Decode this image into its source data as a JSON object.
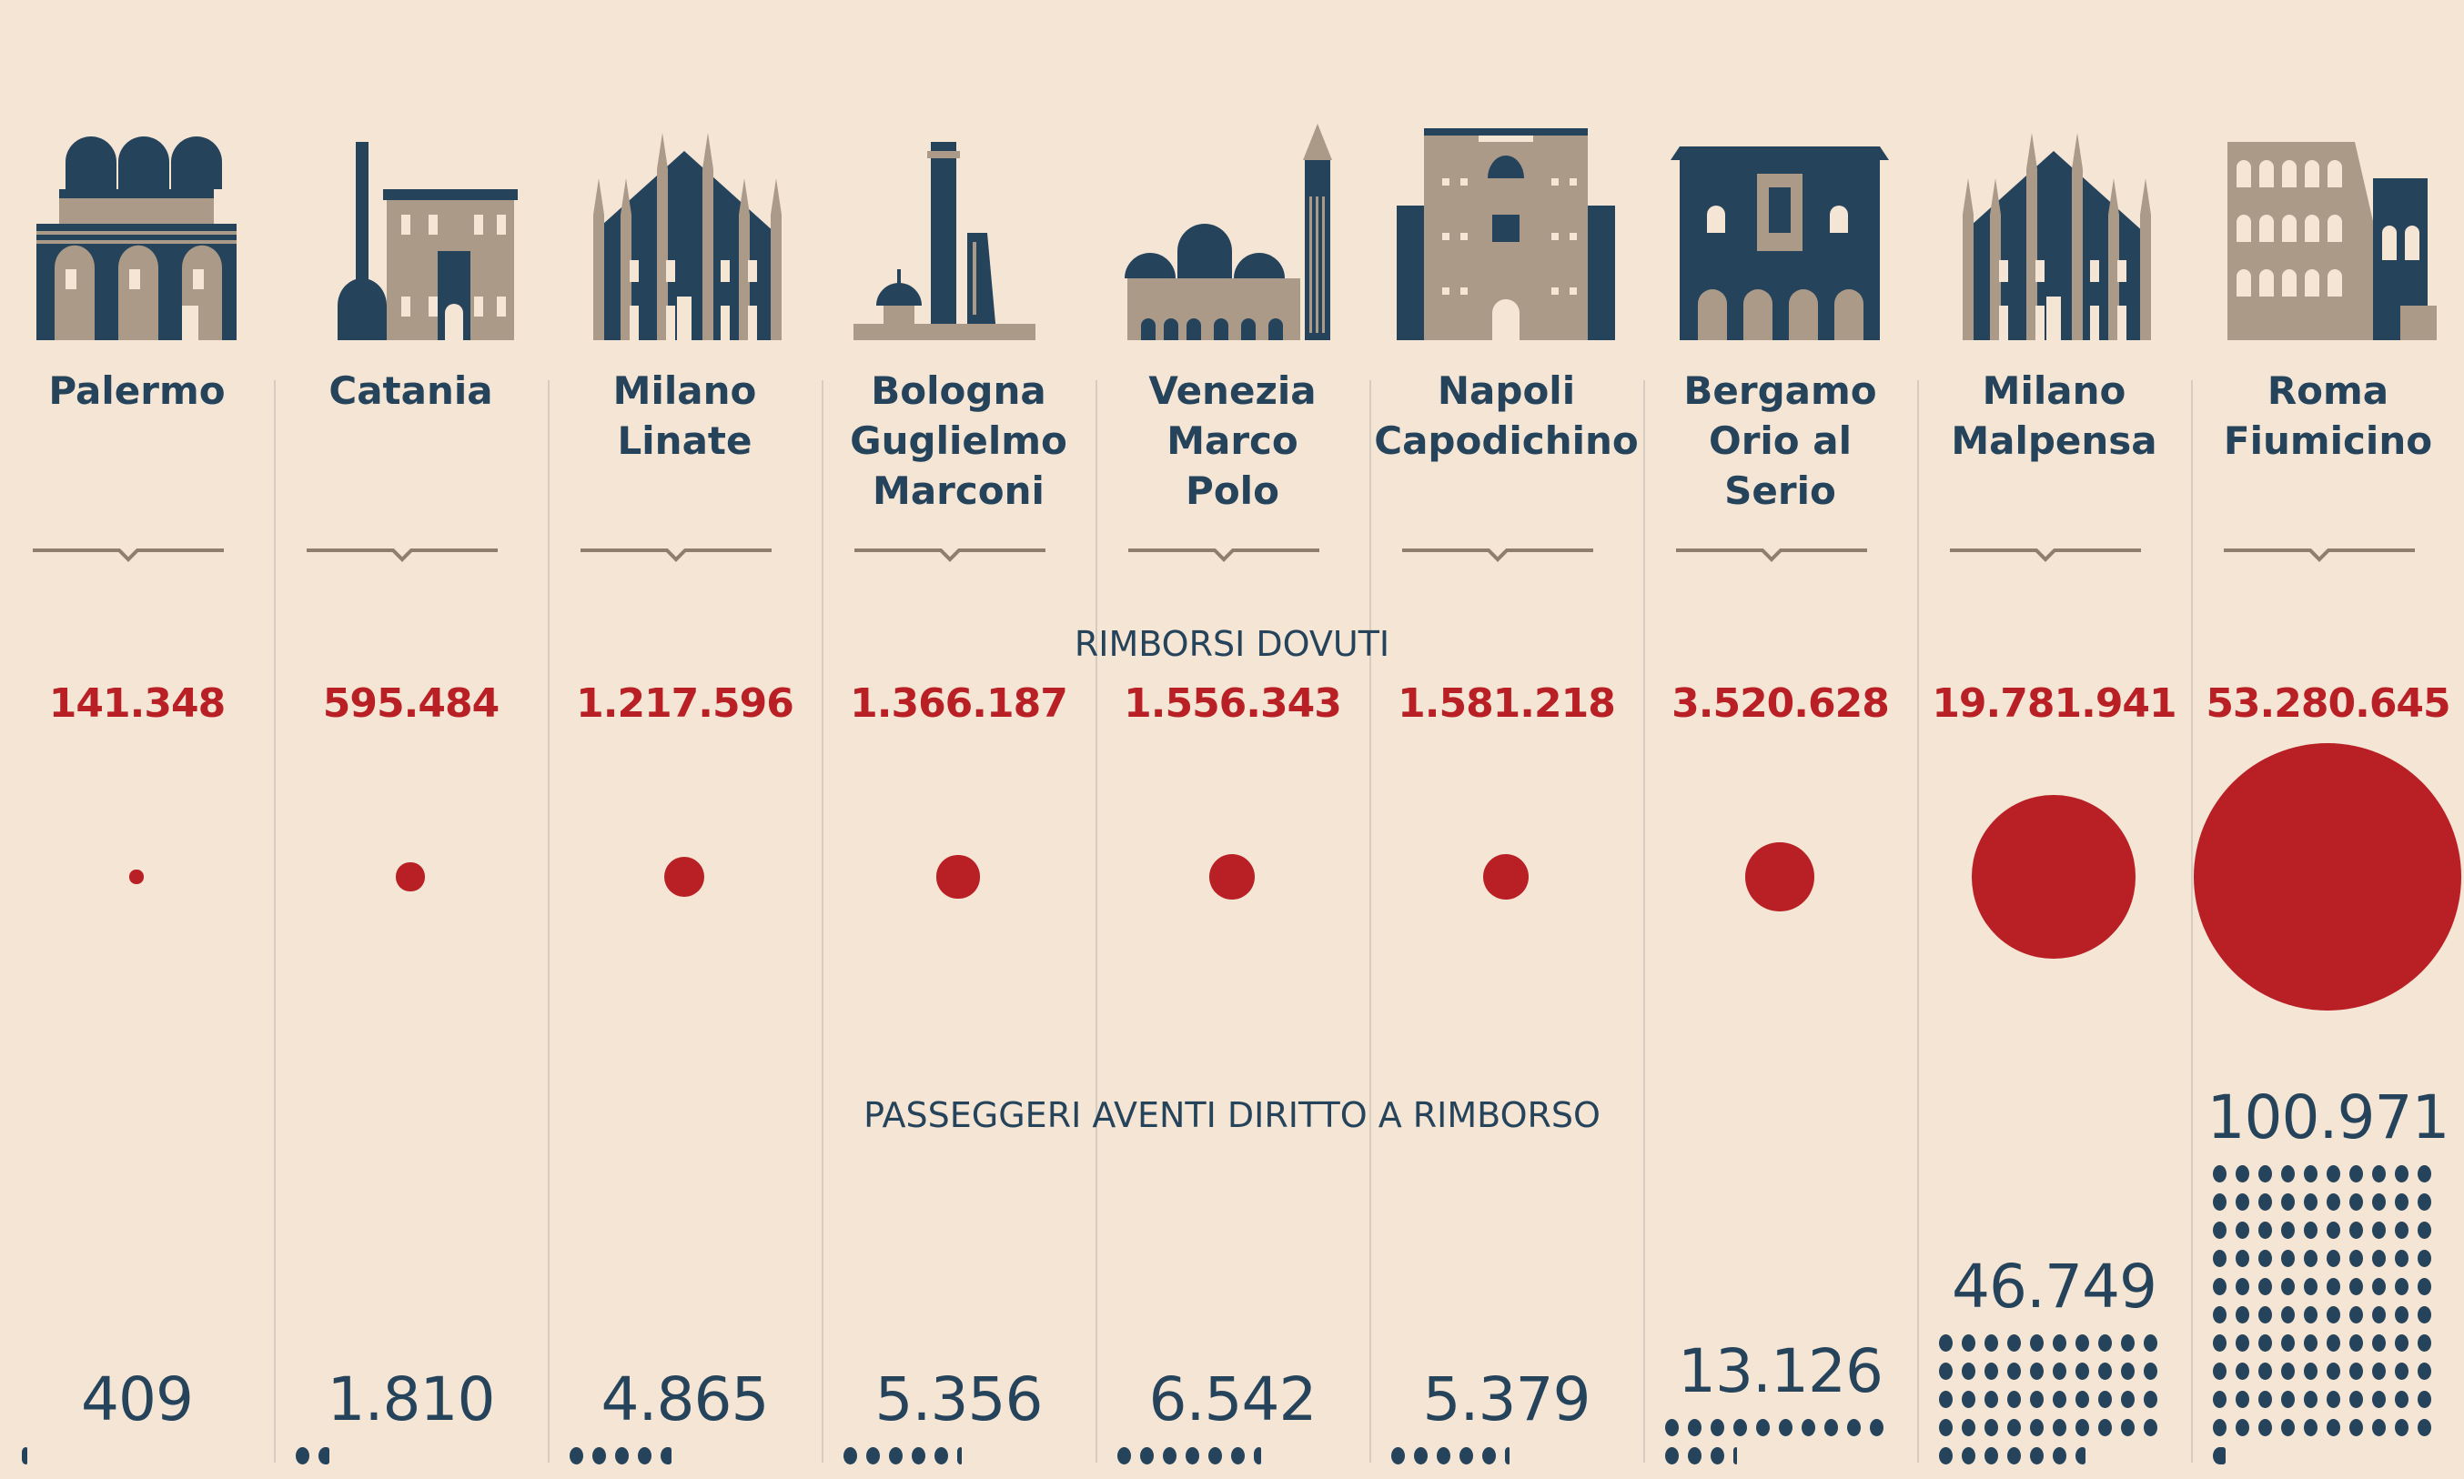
{
  "labels": {
    "rimborsi": "RIMBORSI DOVUTI",
    "passeggeri": "PASSEGGERI AVENTI DIRITTO A RIMBORSO"
  },
  "colors": {
    "background": "#f5e5d5",
    "navy": "#25435a",
    "tan": "#ab9a88",
    "red": "#b82025"
  },
  "chart_data": {
    "type": "bubble+pictogram",
    "categories": [
      "Palermo",
      "Catania",
      "Milano Linate",
      "Bologna Guglielmo Marconi",
      "Venezia Marco Polo",
      "Napoli Capodichino",
      "Bergamo Orio al Serio",
      "Milano Malpensa",
      "Roma Fiumicino"
    ],
    "series": [
      {
        "name": "RIMBORSI DOVUTI",
        "display": [
          "141.348",
          "595.484",
          "1.217.596",
          "1.366.187",
          "1.556.343",
          "1.581.218",
          "3.520.628",
          "19.781.941",
          "53.280.645"
        ],
        "values": [
          141348,
          595484,
          1217596,
          1366187,
          1556343,
          1581218,
          3520628,
          19781941,
          53280645
        ]
      },
      {
        "name": "PASSEGGERI AVENTI DIRITTO A RIMBORSO",
        "display": [
          "409",
          "1.810",
          "4.865",
          "5.356",
          "6.542",
          "5.379",
          "13.126",
          "46.749",
          "100.971"
        ],
        "values": [
          409,
          1810,
          4865,
          5356,
          6542,
          5379,
          13126,
          46749,
          100971
        ]
      }
    ],
    "dot_unit": 1000
  },
  "airports": [
    {
      "name_lines": [
        "Palermo"
      ],
      "icon": "domes-icon"
    },
    {
      "name_lines": [
        "Catania"
      ],
      "icon": "elephant-palazzo-icon"
    },
    {
      "name_lines": [
        "Milano",
        "Linate"
      ],
      "icon": "duomo-icon"
    },
    {
      "name_lines": [
        "Bologna",
        "Guglielmo",
        "Marconi"
      ],
      "icon": "towers-icon"
    },
    {
      "name_lines": [
        "Venezia",
        "Marco",
        "Polo"
      ],
      "icon": "basilica-icon"
    },
    {
      "name_lines": [
        "Napoli",
        "Capodichino"
      ],
      "icon": "castle-icon"
    },
    {
      "name_lines": [
        "Bergamo",
        "Orio al",
        "Serio"
      ],
      "icon": "palazzo-icon"
    },
    {
      "name_lines": [
        "Milano",
        "Malpensa"
      ],
      "icon": "duomo-icon"
    },
    {
      "name_lines": [
        "Roma",
        "Fiumicino"
      ],
      "icon": "colosseum-icon"
    }
  ]
}
